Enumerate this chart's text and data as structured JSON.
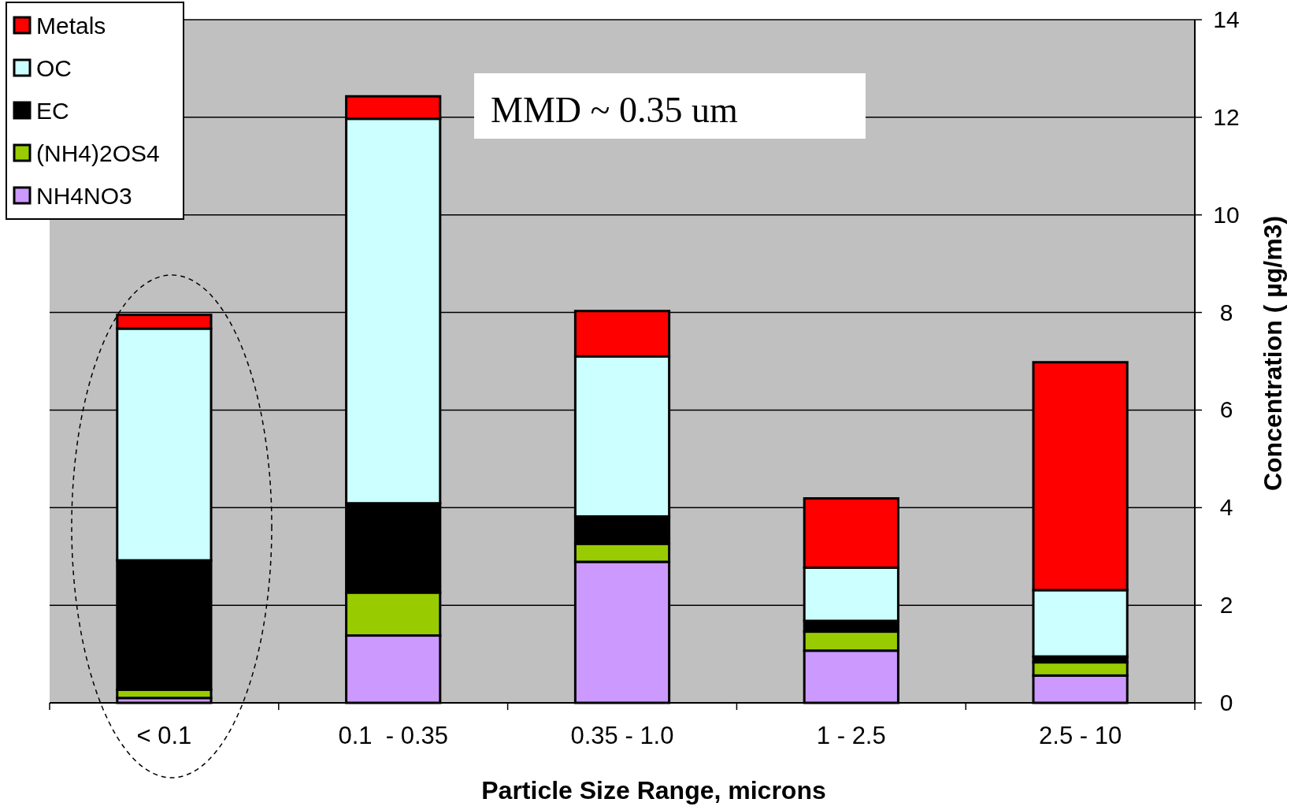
{
  "chart_data": {
    "type": "bar",
    "stacked": true,
    "categories": [
      "< 0.1",
      "0.1  - 0.35",
      "0.35 - 1.0",
      "1 - 2.5",
      "2.5 - 10"
    ],
    "series": [
      {
        "name": "NH4NO3",
        "color": "#cc99ff",
        "values": [
          0.1,
          1.38,
          2.89,
          1.07,
          0.56
        ]
      },
      {
        "name": "(NH4)2OS4",
        "color": "#99cc00",
        "values": [
          0.17,
          0.88,
          0.37,
          0.39,
          0.27
        ]
      },
      {
        "name": "EC",
        "color": "#000000",
        "values": [
          2.65,
          1.83,
          0.56,
          0.22,
          0.12
        ]
      },
      {
        "name": "OC",
        "color": "#ccffff",
        "values": [
          4.75,
          7.88,
          3.28,
          1.09,
          1.36
        ]
      },
      {
        "name": "Metals",
        "color": "#ff0000",
        "values": [
          0.28,
          0.46,
          0.93,
          1.42,
          4.67
        ]
      }
    ],
    "ylim": [
      0,
      14
    ],
    "yticks": [
      0,
      2,
      4,
      6,
      8,
      10,
      12,
      14
    ],
    "xlabel": "Particle Size Range, microns",
    "ylabel": "Concentration ( µg/m3)",
    "annotations": [
      "MMD ~ 0.35 um"
    ],
    "grid": "y",
    "legend": "top left"
  }
}
